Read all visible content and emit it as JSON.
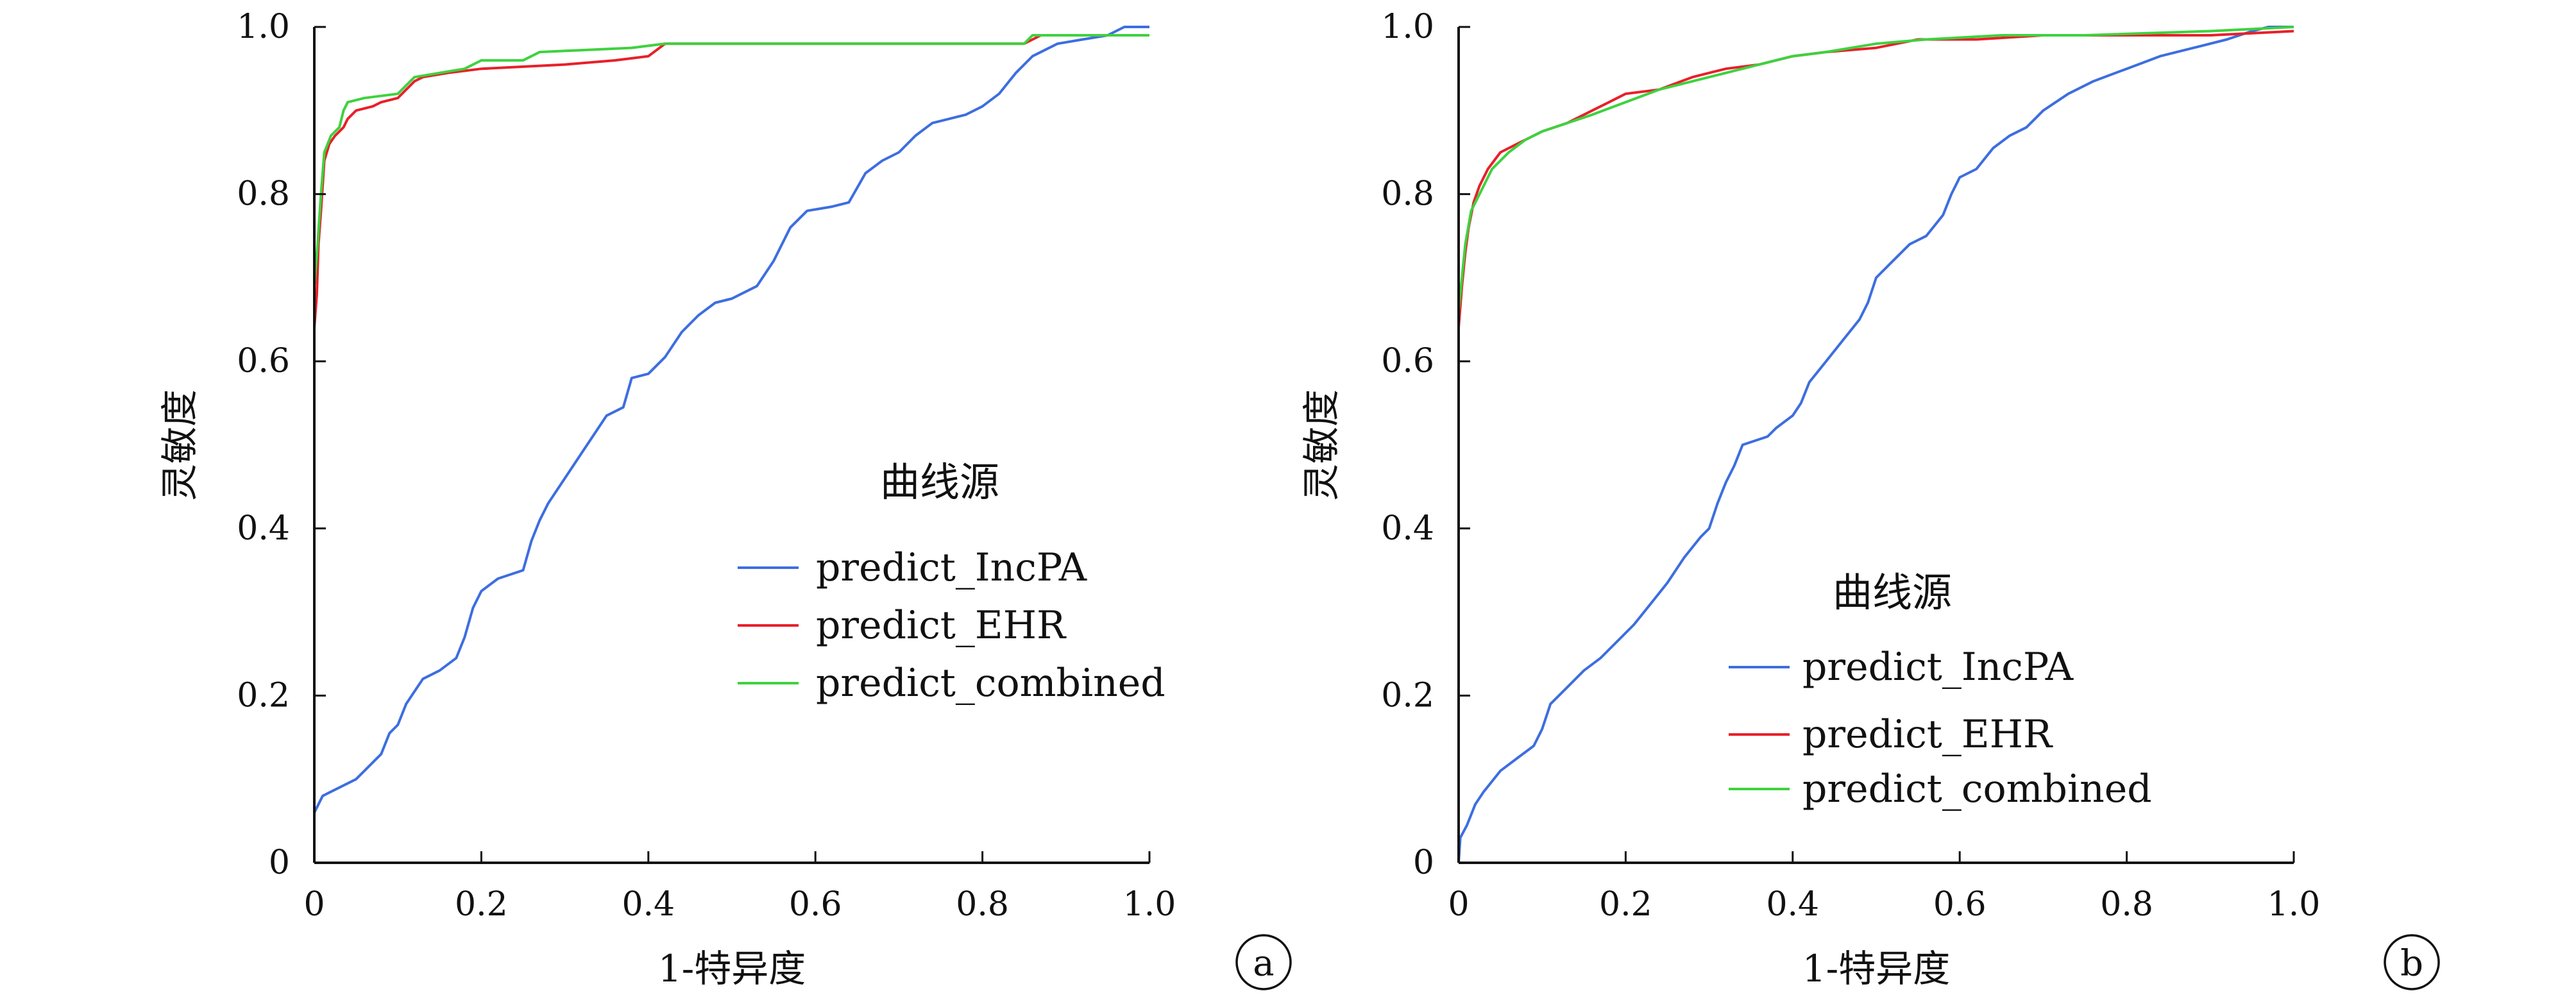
{
  "chart_data": [
    {
      "type": "line",
      "panel_label": "a",
      "xlabel": "1-特异度",
      "ylabel": "灵敏度",
      "xlim": [
        0,
        1.0
      ],
      "ylim": [
        0,
        1.0
      ],
      "x_ticks": [
        "0",
        "0.2",
        "0.4",
        "0.6",
        "0.8",
        "1.0"
      ],
      "y_ticks": [
        "0",
        "0.2",
        "0.4",
        "0.6",
        "0.8",
        "1.0"
      ],
      "grid": false,
      "legend": {
        "title": "曲线源",
        "placement": "center-right",
        "entries": [
          "predict_IncPA",
          "predict_EHR",
          "predict_combined"
        ]
      },
      "series": [
        {
          "name": "predict_IncPA",
          "color": "#3d6ee0",
          "points": [
            [
              0,
              0
            ],
            [
              0,
              0.06
            ],
            [
              0.005,
              0.07
            ],
            [
              0.01,
              0.08
            ],
            [
              0.02,
              0.085
            ],
            [
              0.03,
              0.09
            ],
            [
              0.05,
              0.1
            ],
            [
              0.06,
              0.11
            ],
            [
              0.08,
              0.13
            ],
            [
              0.09,
              0.155
            ],
            [
              0.1,
              0.165
            ],
            [
              0.11,
              0.19
            ],
            [
              0.12,
              0.205
            ],
            [
              0.13,
              0.22
            ],
            [
              0.15,
              0.23
            ],
            [
              0.17,
              0.245
            ],
            [
              0.18,
              0.27
            ],
            [
              0.19,
              0.305
            ],
            [
              0.2,
              0.325
            ],
            [
              0.22,
              0.34
            ],
            [
              0.25,
              0.35
            ],
            [
              0.26,
              0.385
            ],
            [
              0.27,
              0.41
            ],
            [
              0.28,
              0.43
            ],
            [
              0.3,
              0.46
            ],
            [
              0.32,
              0.49
            ],
            [
              0.34,
              0.52
            ],
            [
              0.35,
              0.535
            ],
            [
              0.37,
              0.545
            ],
            [
              0.38,
              0.58
            ],
            [
              0.4,
              0.585
            ],
            [
              0.42,
              0.605
            ],
            [
              0.44,
              0.635
            ],
            [
              0.46,
              0.655
            ],
            [
              0.48,
              0.67
            ],
            [
              0.5,
              0.675
            ],
            [
              0.53,
              0.69
            ],
            [
              0.55,
              0.72
            ],
            [
              0.57,
              0.76
            ],
            [
              0.59,
              0.78
            ],
            [
              0.62,
              0.785
            ],
            [
              0.64,
              0.79
            ],
            [
              0.66,
              0.825
            ],
            [
              0.68,
              0.84
            ],
            [
              0.7,
              0.85
            ],
            [
              0.72,
              0.87
            ],
            [
              0.74,
              0.885
            ],
            [
              0.78,
              0.895
            ],
            [
              0.8,
              0.905
            ],
            [
              0.82,
              0.92
            ],
            [
              0.84,
              0.945
            ],
            [
              0.86,
              0.965
            ],
            [
              0.89,
              0.98
            ],
            [
              0.92,
              0.985
            ],
            [
              0.95,
              0.99
            ],
            [
              0.97,
              1.0
            ],
            [
              1.0,
              1.0
            ]
          ]
        },
        {
          "name": "predict_EHR",
          "color": "#e8202a",
          "points": [
            [
              0,
              0
            ],
            [
              0,
              0.64
            ],
            [
              0.003,
              0.68
            ],
            [
              0.005,
              0.74
            ],
            [
              0.008,
              0.78
            ],
            [
              0.012,
              0.84
            ],
            [
              0.018,
              0.86
            ],
            [
              0.025,
              0.87
            ],
            [
              0.035,
              0.88
            ],
            [
              0.04,
              0.89
            ],
            [
              0.05,
              0.9
            ],
            [
              0.07,
              0.905
            ],
            [
              0.08,
              0.91
            ],
            [
              0.1,
              0.915
            ],
            [
              0.11,
              0.925
            ],
            [
              0.12,
              0.935
            ],
            [
              0.13,
              0.94
            ],
            [
              0.16,
              0.945
            ],
            [
              0.2,
              0.95
            ],
            [
              0.3,
              0.955
            ],
            [
              0.36,
              0.96
            ],
            [
              0.4,
              0.965
            ],
            [
              0.42,
              0.98
            ],
            [
              0.6,
              0.98
            ],
            [
              0.85,
              0.98
            ],
            [
              0.87,
              0.99
            ],
            [
              0.97,
              0.99
            ],
            [
              1.0,
              0.99
            ]
          ]
        },
        {
          "name": "predict_combined",
          "color": "#3ed23e",
          "points": [
            [
              0,
              0
            ],
            [
              0,
              0.69
            ],
            [
              0.004,
              0.74
            ],
            [
              0.008,
              0.8
            ],
            [
              0.012,
              0.85
            ],
            [
              0.02,
              0.87
            ],
            [
              0.03,
              0.88
            ],
            [
              0.035,
              0.9
            ],
            [
              0.04,
              0.91
            ],
            [
              0.06,
              0.915
            ],
            [
              0.1,
              0.92
            ],
            [
              0.12,
              0.94
            ],
            [
              0.18,
              0.95
            ],
            [
              0.2,
              0.96
            ],
            [
              0.25,
              0.96
            ],
            [
              0.27,
              0.97
            ],
            [
              0.38,
              0.975
            ],
            [
              0.42,
              0.98
            ],
            [
              0.6,
              0.98
            ],
            [
              0.85,
              0.98
            ],
            [
              0.86,
              0.99
            ],
            [
              1.0,
              0.99
            ]
          ]
        }
      ]
    },
    {
      "type": "line",
      "panel_label": "b",
      "xlabel": "1-特异度",
      "ylabel": "灵敏度",
      "xlim": [
        0,
        1.0
      ],
      "ylim": [
        0,
        1.0
      ],
      "x_ticks": [
        "0",
        "0.2",
        "0.4",
        "0.6",
        "0.8",
        "1.0"
      ],
      "y_ticks": [
        "0",
        "0.2",
        "0.4",
        "0.6",
        "0.8",
        "1.0"
      ],
      "grid": false,
      "legend": {
        "title": "曲线源",
        "placement": "center-right",
        "entries": [
          "predict_IncPA",
          "predict_EHR",
          "predict_combined"
        ]
      },
      "series": [
        {
          "name": "predict_IncPA",
          "color": "#3d6ee0",
          "points": [
            [
              0,
              0
            ],
            [
              0.002,
              0.03
            ],
            [
              0.01,
              0.045
            ],
            [
              0.02,
              0.07
            ],
            [
              0.03,
              0.085
            ],
            [
              0.05,
              0.11
            ],
            [
              0.07,
              0.125
            ],
            [
              0.09,
              0.14
            ],
            [
              0.1,
              0.16
            ],
            [
              0.11,
              0.19
            ],
            [
              0.13,
              0.21
            ],
            [
              0.15,
              0.23
            ],
            [
              0.17,
              0.245
            ],
            [
              0.19,
              0.265
            ],
            [
              0.21,
              0.285
            ],
            [
              0.23,
              0.31
            ],
            [
              0.25,
              0.335
            ],
            [
              0.27,
              0.365
            ],
            [
              0.29,
              0.39
            ],
            [
              0.3,
              0.4
            ],
            [
              0.31,
              0.43
            ],
            [
              0.32,
              0.455
            ],
            [
              0.33,
              0.475
            ],
            [
              0.34,
              0.5
            ],
            [
              0.37,
              0.51
            ],
            [
              0.38,
              0.52
            ],
            [
              0.4,
              0.535
            ],
            [
              0.41,
              0.55
            ],
            [
              0.42,
              0.575
            ],
            [
              0.44,
              0.6
            ],
            [
              0.46,
              0.625
            ],
            [
              0.48,
              0.65
            ],
            [
              0.49,
              0.67
            ],
            [
              0.5,
              0.7
            ],
            [
              0.52,
              0.72
            ],
            [
              0.54,
              0.74
            ],
            [
              0.56,
              0.75
            ],
            [
              0.58,
              0.775
            ],
            [
              0.59,
              0.8
            ],
            [
              0.6,
              0.82
            ],
            [
              0.62,
              0.83
            ],
            [
              0.64,
              0.855
            ],
            [
              0.66,
              0.87
            ],
            [
              0.68,
              0.88
            ],
            [
              0.7,
              0.9
            ],
            [
              0.73,
              0.92
            ],
            [
              0.76,
              0.935
            ],
            [
              0.8,
              0.95
            ],
            [
              0.84,
              0.965
            ],
            [
              0.88,
              0.975
            ],
            [
              0.92,
              0.985
            ],
            [
              0.95,
              0.995
            ],
            [
              0.97,
              1.0
            ],
            [
              1.0,
              1.0
            ]
          ]
        },
        {
          "name": "predict_EHR",
          "color": "#e8202a",
          "points": [
            [
              0,
              0
            ],
            [
              0,
              0.64
            ],
            [
              0.004,
              0.69
            ],
            [
              0.008,
              0.73
            ],
            [
              0.012,
              0.76
            ],
            [
              0.018,
              0.79
            ],
            [
              0.025,
              0.81
            ],
            [
              0.035,
              0.83
            ],
            [
              0.05,
              0.85
            ],
            [
              0.07,
              0.86
            ],
            [
              0.1,
              0.875
            ],
            [
              0.13,
              0.885
            ],
            [
              0.16,
              0.9
            ],
            [
              0.18,
              0.91
            ],
            [
              0.2,
              0.92
            ],
            [
              0.24,
              0.925
            ],
            [
              0.28,
              0.94
            ],
            [
              0.32,
              0.95
            ],
            [
              0.36,
              0.955
            ],
            [
              0.4,
              0.965
            ],
            [
              0.44,
              0.97
            ],
            [
              0.5,
              0.975
            ],
            [
              0.55,
              0.985
            ],
            [
              0.62,
              0.985
            ],
            [
              0.7,
              0.99
            ],
            [
              0.8,
              0.99
            ],
            [
              0.9,
              0.99
            ],
            [
              1.0,
              0.995
            ]
          ]
        },
        {
          "name": "predict_combined",
          "color": "#3ed23e",
          "points": [
            [
              0,
              0
            ],
            [
              0,
              0.66
            ],
            [
              0.004,
              0.7
            ],
            [
              0.008,
              0.74
            ],
            [
              0.015,
              0.78
            ],
            [
              0.025,
              0.8
            ],
            [
              0.04,
              0.83
            ],
            [
              0.06,
              0.85
            ],
            [
              0.08,
              0.865
            ],
            [
              0.1,
              0.875
            ],
            [
              0.13,
              0.885
            ],
            [
              0.16,
              0.895
            ],
            [
              0.2,
              0.91
            ],
            [
              0.24,
              0.925
            ],
            [
              0.28,
              0.935
            ],
            [
              0.32,
              0.945
            ],
            [
              0.36,
              0.955
            ],
            [
              0.4,
              0.965
            ],
            [
              0.44,
              0.97
            ],
            [
              0.5,
              0.98
            ],
            [
              0.56,
              0.985
            ],
            [
              0.65,
              0.99
            ],
            [
              0.75,
              0.99
            ],
            [
              0.9,
              0.995
            ],
            [
              1.0,
              1.0
            ]
          ]
        }
      ]
    }
  ]
}
